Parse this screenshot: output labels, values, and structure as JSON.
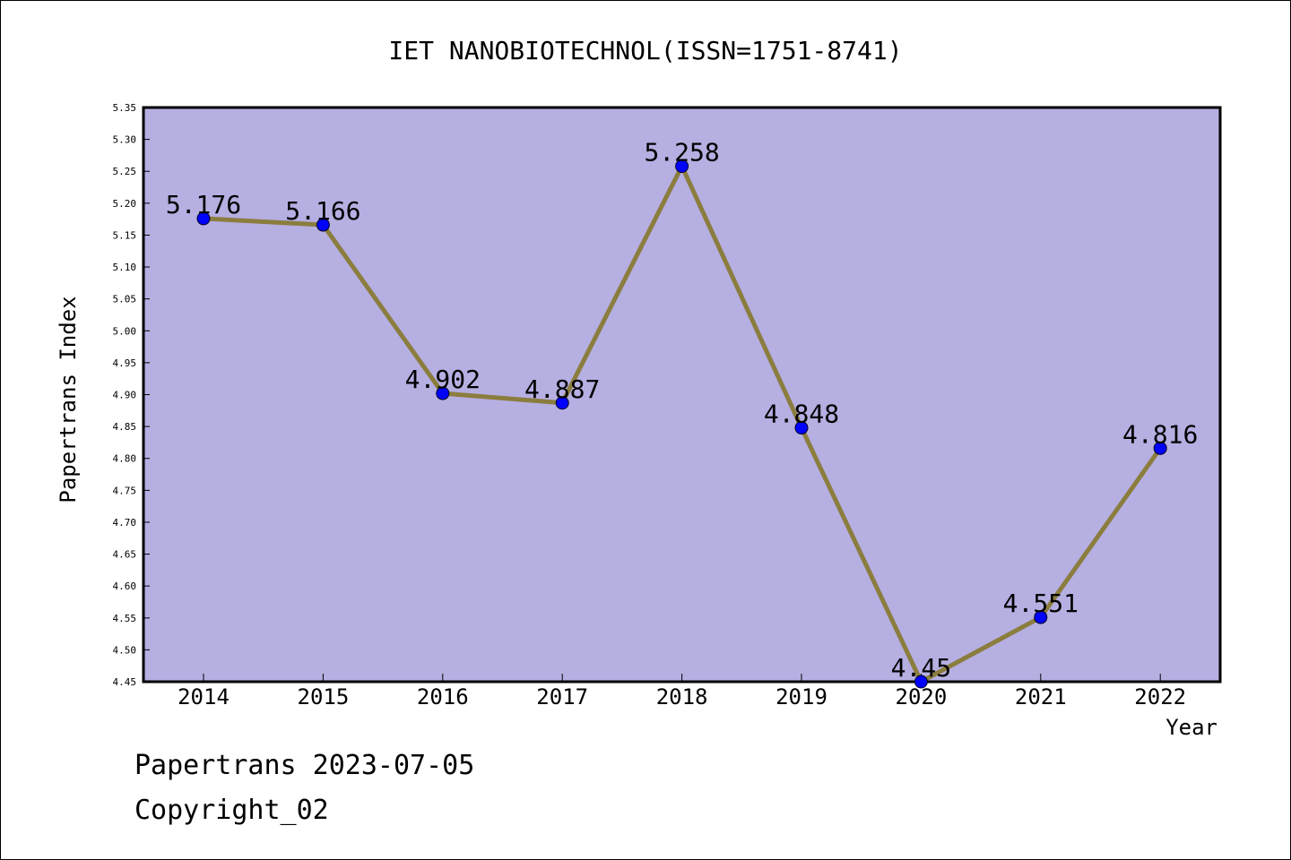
{
  "chart_data": {
    "type": "line",
    "title": "IET NANOBIOTECHNOL(ISSN=1751-8741)",
    "xlabel": "Year",
    "ylabel": "Papertrans Index",
    "categories": [
      "2014",
      "2015",
      "2016",
      "2017",
      "2018",
      "2019",
      "2020",
      "2021",
      "2022"
    ],
    "series": [
      {
        "values": [
          5.176,
          5.166,
          4.902,
          4.887,
          5.258,
          4.848,
          4.45,
          4.551,
          4.816
        ],
        "labels": [
          "5.176",
          "5.166",
          "4.902",
          "4.887",
          "5.258",
          "4.848",
          "4.45",
          "4.551",
          "4.816"
        ]
      }
    ],
    "ylim": [
      4.45,
      5.35
    ],
    "yticks": [
      "4.45",
      "4.50",
      "4.55",
      "4.60",
      "4.65",
      "4.70",
      "4.75",
      "4.80",
      "4.85",
      "4.90",
      "4.95",
      "5.00",
      "5.05",
      "5.10",
      "5.15",
      "5.20",
      "5.25",
      "5.30",
      "5.35"
    ],
    "grid": false,
    "colors": {
      "plot_background": "#b5afe2",
      "line": "#8b7d3e",
      "marker": "#0000ff"
    }
  },
  "footer": {
    "date_line": "Papertrans 2023-07-05",
    "copyright": "Copyright_02"
  }
}
